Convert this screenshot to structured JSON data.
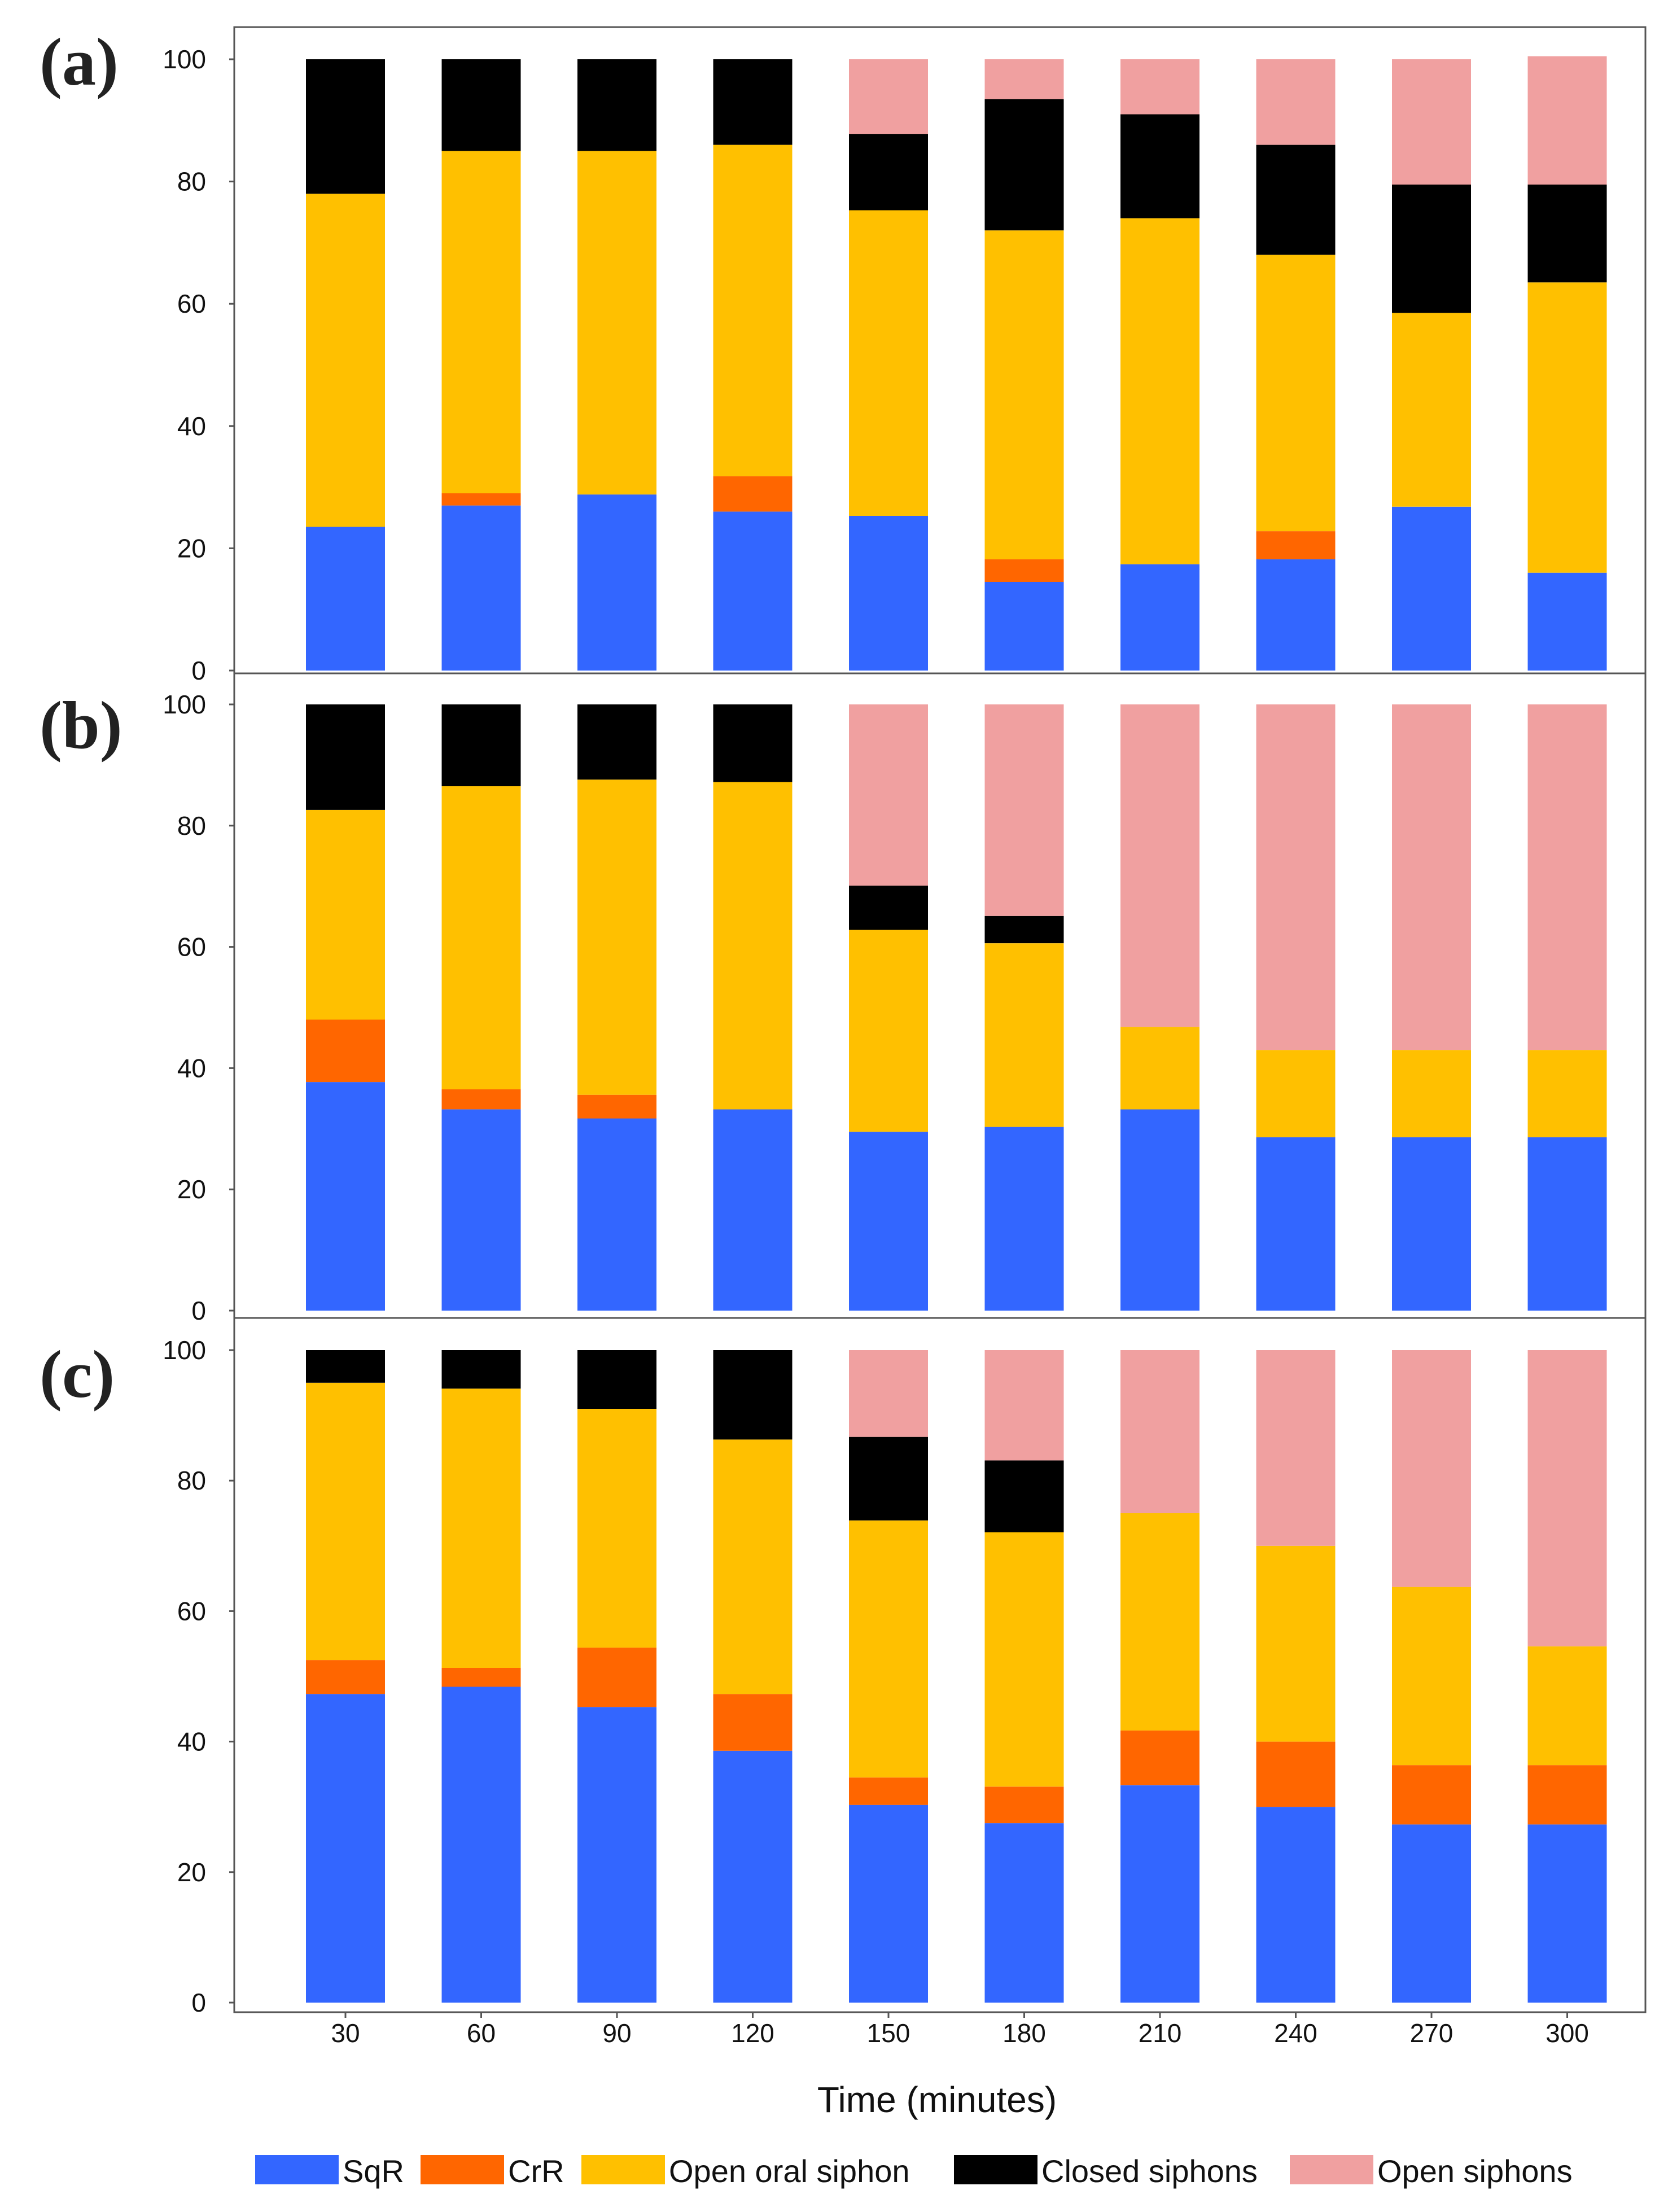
{
  "chart_data": {
    "type": "bar",
    "stacked": true,
    "xlabel": "Time (minutes)",
    "ylim": [
      0,
      100
    ],
    "yticks": [
      0,
      20,
      40,
      60,
      80,
      100
    ],
    "categories": [
      "30",
      "60",
      "90",
      "120",
      "150",
      "180",
      "210",
      "240",
      "270",
      "300"
    ],
    "legend_position": "bottom",
    "series_meta": [
      {
        "key": "sqr",
        "name": "SqR",
        "color": "#3366ff"
      },
      {
        "key": "crr",
        "name": "CrR",
        "color": "#ff6600"
      },
      {
        "key": "oos",
        "name": "Open oral siphon",
        "color": "#ffc000"
      },
      {
        "key": "cs",
        "name": "Closed siphons",
        "color": "#000000"
      },
      {
        "key": "os",
        "name": "Open siphons",
        "color": "#f0a0a0"
      }
    ],
    "panels": [
      {
        "label": "(a)",
        "series": [
          {
            "name": "SqR",
            "values": [
              23.5,
              27,
              28.8,
              26,
              25.3,
              14.5,
              17.4,
              18.2,
              26.8,
              16
            ]
          },
          {
            "name": "CrR",
            "values": [
              0,
              2,
              0,
              5.8,
              0,
              3.7,
              0,
              4.6,
              0,
              0
            ]
          },
          {
            "name": "Open oral siphon",
            "values": [
              54.5,
              56,
              56.2,
              54.2,
              50,
              53.8,
              56.6,
              45.2,
              31.7,
              47.5
            ]
          },
          {
            "name": "Closed siphons",
            "values": [
              22,
              15,
              15,
              14,
              12.5,
              21.5,
              17,
              18,
              21,
              16
            ]
          },
          {
            "name": "Open siphons",
            "values": [
              0,
              0,
              0,
              0,
              12.2,
              6.5,
              9,
              14,
              20.5,
              21
            ]
          }
        ]
      },
      {
        "label": "(b)",
        "series": [
          {
            "name": "SqR",
            "values": [
              37.7,
              33.2,
              31.7,
              33.2,
              29.5,
              30.3,
              33.2,
              28.6,
              28.6,
              28.6
            ]
          },
          {
            "name": "CrR",
            "values": [
              10.3,
              3.3,
              3.9,
              0,
              0,
              0,
              0,
              0,
              0,
              0
            ]
          },
          {
            "name": "Open oral siphon",
            "values": [
              34.6,
              50,
              52,
              54,
              33.3,
              30.3,
              13.6,
              14.4,
              14.4,
              14.4
            ]
          },
          {
            "name": "Closed siphons",
            "values": [
              17.4,
              13.5,
              12.4,
              12.8,
              7.3,
              4.5,
              0,
              0,
              0,
              0
            ]
          },
          {
            "name": "Open siphons",
            "values": [
              0,
              0,
              0,
              0,
              29.9,
              34.9,
              53.2,
              57,
              57,
              57
            ]
          }
        ]
      },
      {
        "label": "(c)",
        "series": [
          {
            "name": "SqR",
            "values": [
              47.3,
              48.4,
              45.3,
              38.6,
              30.3,
              27.5,
              33.3,
              30,
              27.3,
              27.3
            ]
          },
          {
            "name": "CrR",
            "values": [
              5.2,
              2.9,
              9.1,
              8.7,
              4.2,
              5.6,
              8.4,
              10,
              9.1,
              9.1
            ]
          },
          {
            "name": "Open oral siphon",
            "values": [
              42.5,
              42.8,
              36.6,
              39,
              39.4,
              39,
              33.3,
              30,
              27.3,
              18.2
            ]
          },
          {
            "name": "Closed siphons",
            "values": [
              5,
              5.9,
              9,
              13.7,
              12.8,
              11,
              0,
              0,
              0,
              0
            ]
          },
          {
            "name": "Open siphons",
            "values": [
              0,
              0,
              0,
              0,
              13.3,
              16.9,
              25,
              30,
              36.3,
              45.4
            ]
          }
        ]
      }
    ]
  }
}
